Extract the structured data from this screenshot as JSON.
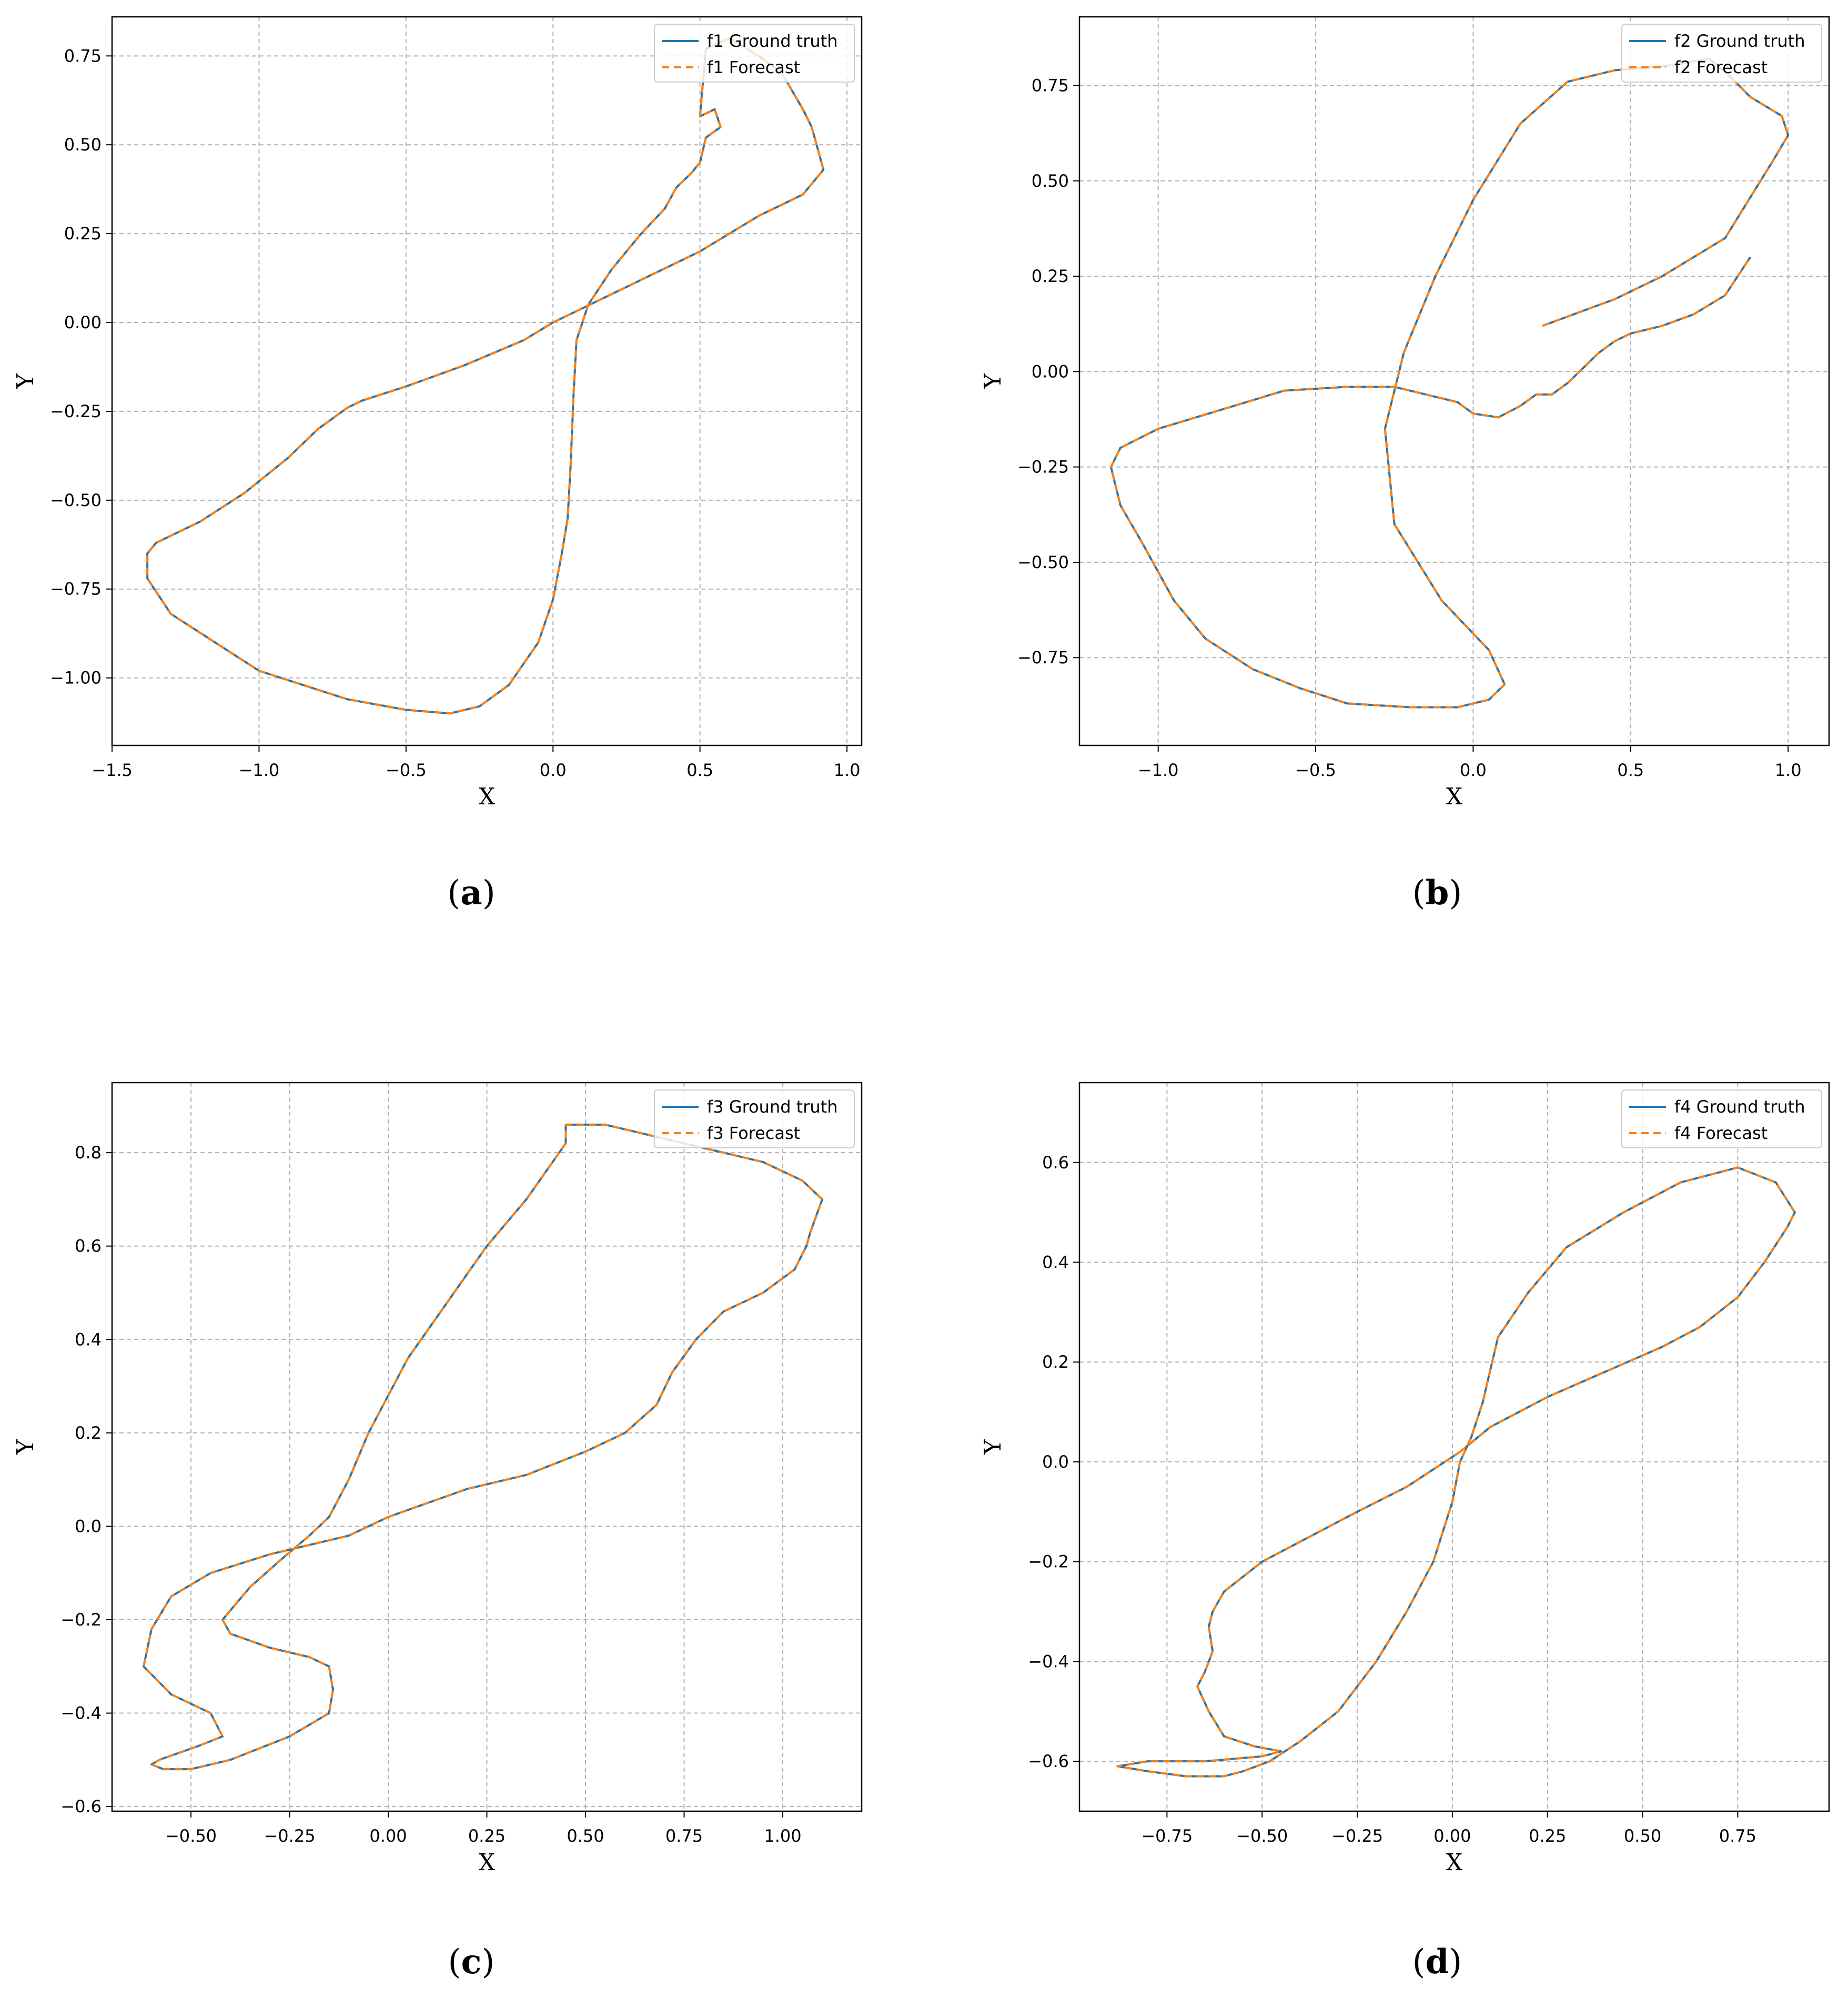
{
  "figure": {
    "captions": [
      {
        "open": "(",
        "letter": "a",
        "close": ")"
      },
      {
        "open": "(",
        "letter": "b",
        "close": ")"
      },
      {
        "open": "(",
        "letter": "c",
        "close": ")"
      },
      {
        "open": "(",
        "letter": "d",
        "close": ")"
      }
    ]
  },
  "colors": {
    "ground_truth": "#1f77b4",
    "forecast": "#ff7f0e",
    "grid": "#b0b0b0"
  },
  "chart_data": [
    {
      "type": "line",
      "xlabel": "X",
      "ylabel": "Y",
      "xlim": [
        -1.5,
        1.05
      ],
      "ylim": [
        -1.19,
        0.86
      ],
      "xticks": [
        -1.5,
        -1.0,
        -0.5,
        0.0,
        0.5,
        1.0
      ],
      "xtick_labels": [
        "−1.5",
        "−1.0",
        "−0.5",
        "0.0",
        "0.5",
        "1.0"
      ],
      "yticks": [
        -1.0,
        -0.75,
        -0.5,
        -0.25,
        0.0,
        0.25,
        0.5,
        0.75
      ],
      "ytick_labels": [
        "−1.00",
        "−0.75",
        "−0.50",
        "−0.25",
        "0.00",
        "0.25",
        "0.50",
        "0.75"
      ],
      "grid": true,
      "legend_position": "top-right",
      "series": [
        {
          "name": "f1 Ground truth",
          "style": "solid",
          "x": [
            0.0,
            0.25,
            0.5,
            0.7,
            0.85,
            0.92,
            0.88,
            0.85,
            0.78,
            0.7,
            0.6,
            0.52,
            0.5,
            0.55,
            0.57,
            0.52,
            0.5,
            0.47,
            0.42,
            0.38,
            0.3,
            0.2,
            0.12,
            0.08,
            0.07,
            0.06,
            0.05,
            0.03,
            0.0,
            -0.05,
            -0.15,
            -0.25,
            -0.35,
            -0.5,
            -0.7,
            -1.0,
            -1.3,
            -1.38,
            -1.38,
            -1.35,
            -1.2,
            -1.05,
            -0.9,
            -0.8,
            -0.7,
            -0.65,
            -0.5,
            -0.3,
            -0.1,
            0.0
          ],
          "y": [
            0.0,
            0.1,
            0.2,
            0.3,
            0.36,
            0.43,
            0.55,
            0.6,
            0.7,
            0.75,
            0.8,
            0.77,
            0.58,
            0.6,
            0.55,
            0.52,
            0.45,
            0.42,
            0.38,
            0.32,
            0.25,
            0.15,
            0.05,
            -0.05,
            -0.2,
            -0.4,
            -0.55,
            -0.65,
            -0.78,
            -0.9,
            -1.02,
            -1.08,
            -1.1,
            -1.09,
            -1.06,
            -0.98,
            -0.82,
            -0.72,
            -0.65,
            -0.62,
            -0.56,
            -0.48,
            -0.38,
            -0.3,
            -0.24,
            -0.22,
            -0.18,
            -0.12,
            -0.05,
            0.0
          ]
        },
        {
          "name": "f1 Forecast",
          "style": "dashed",
          "x": [
            0.0,
            0.25,
            0.5,
            0.7,
            0.85,
            0.92,
            0.88,
            0.85,
            0.78,
            0.7,
            0.6,
            0.52,
            0.5,
            0.55,
            0.57,
            0.52,
            0.5,
            0.47,
            0.42,
            0.38,
            0.3,
            0.2,
            0.12,
            0.08,
            0.07,
            0.06,
            0.05,
            0.03,
            0.0,
            -0.05,
            -0.15,
            -0.25,
            -0.35,
            -0.5,
            -0.7,
            -1.0,
            -1.3,
            -1.38,
            -1.38,
            -1.35,
            -1.2,
            -1.05,
            -0.9,
            -0.8,
            -0.7,
            -0.65,
            -0.5,
            -0.3,
            -0.1,
            0.0
          ],
          "y": [
            0.0,
            0.1,
            0.2,
            0.3,
            0.36,
            0.43,
            0.55,
            0.6,
            0.7,
            0.75,
            0.8,
            0.77,
            0.58,
            0.6,
            0.55,
            0.52,
            0.45,
            0.42,
            0.38,
            0.32,
            0.25,
            0.15,
            0.05,
            -0.05,
            -0.2,
            -0.4,
            -0.55,
            -0.65,
            -0.78,
            -0.9,
            -1.02,
            -1.08,
            -1.1,
            -1.09,
            -1.06,
            -0.98,
            -0.82,
            -0.72,
            -0.65,
            -0.62,
            -0.56,
            -0.48,
            -0.38,
            -0.3,
            -0.24,
            -0.22,
            -0.18,
            -0.12,
            -0.05,
            0.0
          ]
        }
      ]
    },
    {
      "type": "line",
      "xlabel": "X",
      "ylabel": "Y",
      "xlim": [
        -1.25,
        1.13
      ],
      "ylim": [
        -0.98,
        0.93
      ],
      "xticks": [
        -1.0,
        -0.5,
        0.0,
        0.5,
        1.0
      ],
      "xtick_labels": [
        "−1.0",
        "−0.5",
        "0.0",
        "0.5",
        "1.0"
      ],
      "yticks": [
        -0.75,
        -0.5,
        -0.25,
        0.0,
        0.25,
        0.5,
        0.75
      ],
      "ytick_labels": [
        "−0.75",
        "−0.50",
        "−0.25",
        "0.00",
        "0.25",
        "0.50",
        "0.75"
      ],
      "grid": true,
      "legend_position": "top-right",
      "series": [
        {
          "name": "f2 Ground truth",
          "style": "solid",
          "x": [
            0.22,
            0.45,
            0.6,
            0.8,
            0.95,
            1.0,
            0.98,
            0.88,
            0.82,
            0.75,
            0.6,
            0.45,
            0.3,
            0.15,
            0.0,
            -0.12,
            -0.22,
            -0.28,
            -0.25,
            -0.1,
            0.05,
            0.1,
            0.05,
            -0.05,
            -0.2,
            -0.4,
            -0.55,
            -0.7,
            -0.85,
            -0.95,
            -1.05,
            -1.12,
            -1.15,
            -1.12,
            -1.0,
            -0.8,
            -0.6,
            -0.4,
            -0.25,
            -0.15,
            -0.05,
            0.0,
            0.08,
            0.15,
            0.2,
            0.25,
            0.3,
            0.35,
            0.4,
            0.45,
            0.5,
            0.6,
            0.7,
            0.8,
            0.88
          ],
          "y": [
            0.12,
            0.19,
            0.25,
            0.35,
            0.55,
            0.62,
            0.67,
            0.72,
            0.77,
            0.82,
            0.8,
            0.79,
            0.76,
            0.65,
            0.45,
            0.25,
            0.05,
            -0.15,
            -0.4,
            -0.6,
            -0.73,
            -0.82,
            -0.86,
            -0.88,
            -0.88,
            -0.87,
            -0.83,
            -0.78,
            -0.7,
            -0.6,
            -0.45,
            -0.35,
            -0.25,
            -0.2,
            -0.15,
            -0.1,
            -0.05,
            -0.04,
            -0.04,
            -0.06,
            -0.08,
            -0.11,
            -0.12,
            -0.09,
            -0.06,
            -0.06,
            -0.03,
            0.01,
            0.05,
            0.08,
            0.1,
            0.12,
            0.15,
            0.2,
            0.3
          ],
          "note": ""
        }
      ]
    },
    {
      "type": "line",
      "xlabel": "X",
      "ylabel": "Y",
      "xlim": [
        -0.7,
        1.2
      ],
      "ylim": [
        -0.61,
        0.95
      ],
      "xticks": [
        -0.5,
        -0.25,
        0.0,
        0.25,
        0.5,
        0.75,
        1.0
      ],
      "xtick_labels": [
        "−0.50",
        "−0.25",
        "0.00",
        "0.25",
        "0.50",
        "0.75",
        "1.00"
      ],
      "yticks": [
        -0.6,
        -0.4,
        -0.2,
        0.0,
        0.2,
        0.4,
        0.6,
        0.8
      ],
      "ytick_labels": [
        "−0.6",
        "−0.4",
        "−0.2",
        "0.0",
        "0.2",
        "0.4",
        "0.6",
        "0.8"
      ],
      "grid": true,
      "legend_position": "top-right",
      "series": [
        {
          "name": "f3 Ground truth",
          "style": "solid",
          "x": [
            0.0,
            0.2,
            0.35,
            0.5,
            0.6,
            0.68,
            0.72,
            0.78,
            0.85,
            0.95,
            1.03,
            1.06,
            1.07,
            1.1,
            1.05,
            0.95,
            0.8,
            0.65,
            0.55,
            0.45,
            0.45,
            0.35,
            0.25,
            0.15,
            0.05,
            -0.05,
            -0.1,
            -0.15,
            -0.2,
            -0.27,
            -0.35,
            -0.42,
            -0.4,
            -0.3,
            -0.2,
            -0.15,
            -0.14,
            -0.15,
            -0.25,
            -0.4,
            -0.5,
            -0.57,
            -0.6,
            -0.58,
            -0.48,
            -0.42,
            -0.45,
            -0.55,
            -0.62,
            -0.6,
            -0.55,
            -0.45,
            -0.3,
            -0.1,
            0.0
          ],
          "y": [
            0.02,
            0.08,
            0.11,
            0.16,
            0.2,
            0.26,
            0.33,
            0.4,
            0.46,
            0.5,
            0.55,
            0.6,
            0.63,
            0.7,
            0.74,
            0.78,
            0.81,
            0.84,
            0.86,
            0.86,
            0.82,
            0.7,
            0.6,
            0.48,
            0.36,
            0.2,
            0.1,
            0.02,
            -0.02,
            -0.07,
            -0.13,
            -0.2,
            -0.23,
            -0.26,
            -0.28,
            -0.3,
            -0.35,
            -0.4,
            -0.45,
            -0.5,
            -0.52,
            -0.52,
            -0.51,
            -0.5,
            -0.47,
            -0.45,
            -0.4,
            -0.36,
            -0.3,
            -0.22,
            -0.15,
            -0.1,
            -0.06,
            -0.02,
            0.02
          ]
        }
      ]
    },
    {
      "type": "line",
      "xlabel": "X",
      "ylabel": "Y",
      "xlim": [
        -0.98,
        0.99
      ],
      "ylim": [
        -0.7,
        0.76
      ],
      "xticks": [
        -0.75,
        -0.5,
        -0.25,
        0.0,
        0.25,
        0.5,
        0.75
      ],
      "xtick_labels": [
        "−0.75",
        "−0.50",
        "−0.25",
        "0.00",
        "0.25",
        "0.50",
        "0.75"
      ],
      "yticks": [
        -0.6,
        -0.4,
        -0.2,
        0.0,
        0.2,
        0.4,
        0.6
      ],
      "ytick_labels": [
        "−0.6",
        "−0.4",
        "−0.2",
        "0.0",
        "0.2",
        "0.4",
        "0.6"
      ],
      "grid": true,
      "legend_position": "top-right",
      "series": [
        {
          "name": "f4 Ground truth",
          "style": "solid",
          "x": [
            0.02,
            0.1,
            0.25,
            0.4,
            0.55,
            0.65,
            0.75,
            0.82,
            0.88,
            0.9,
            0.85,
            0.75,
            0.6,
            0.45,
            0.3,
            0.2,
            0.12,
            0.08,
            0.05,
            0.02,
            0.0,
            -0.05,
            -0.12,
            -0.2,
            -0.3,
            -0.4,
            -0.48,
            -0.55,
            -0.6,
            -0.7,
            -0.8,
            -0.88,
            -0.8,
            -0.65,
            -0.5,
            -0.45,
            -0.52,
            -0.6,
            -0.64,
            -0.67,
            -0.65,
            -0.63,
            -0.64,
            -0.63,
            -0.6,
            -0.5,
            -0.4,
            -0.25,
            -0.12,
            0.02
          ],
          "y": [
            0.02,
            0.07,
            0.13,
            0.18,
            0.23,
            0.27,
            0.33,
            0.4,
            0.47,
            0.5,
            0.56,
            0.59,
            0.56,
            0.5,
            0.43,
            0.34,
            0.25,
            0.12,
            0.05,
            0.0,
            -0.08,
            -0.2,
            -0.3,
            -0.4,
            -0.5,
            -0.56,
            -0.6,
            -0.62,
            -0.63,
            -0.63,
            -0.62,
            -0.61,
            -0.6,
            -0.6,
            -0.59,
            -0.58,
            -0.57,
            -0.55,
            -0.5,
            -0.45,
            -0.42,
            -0.38,
            -0.33,
            -0.3,
            -0.26,
            -0.2,
            -0.16,
            -0.1,
            -0.05,
            0.02
          ]
        }
      ]
    }
  ]
}
